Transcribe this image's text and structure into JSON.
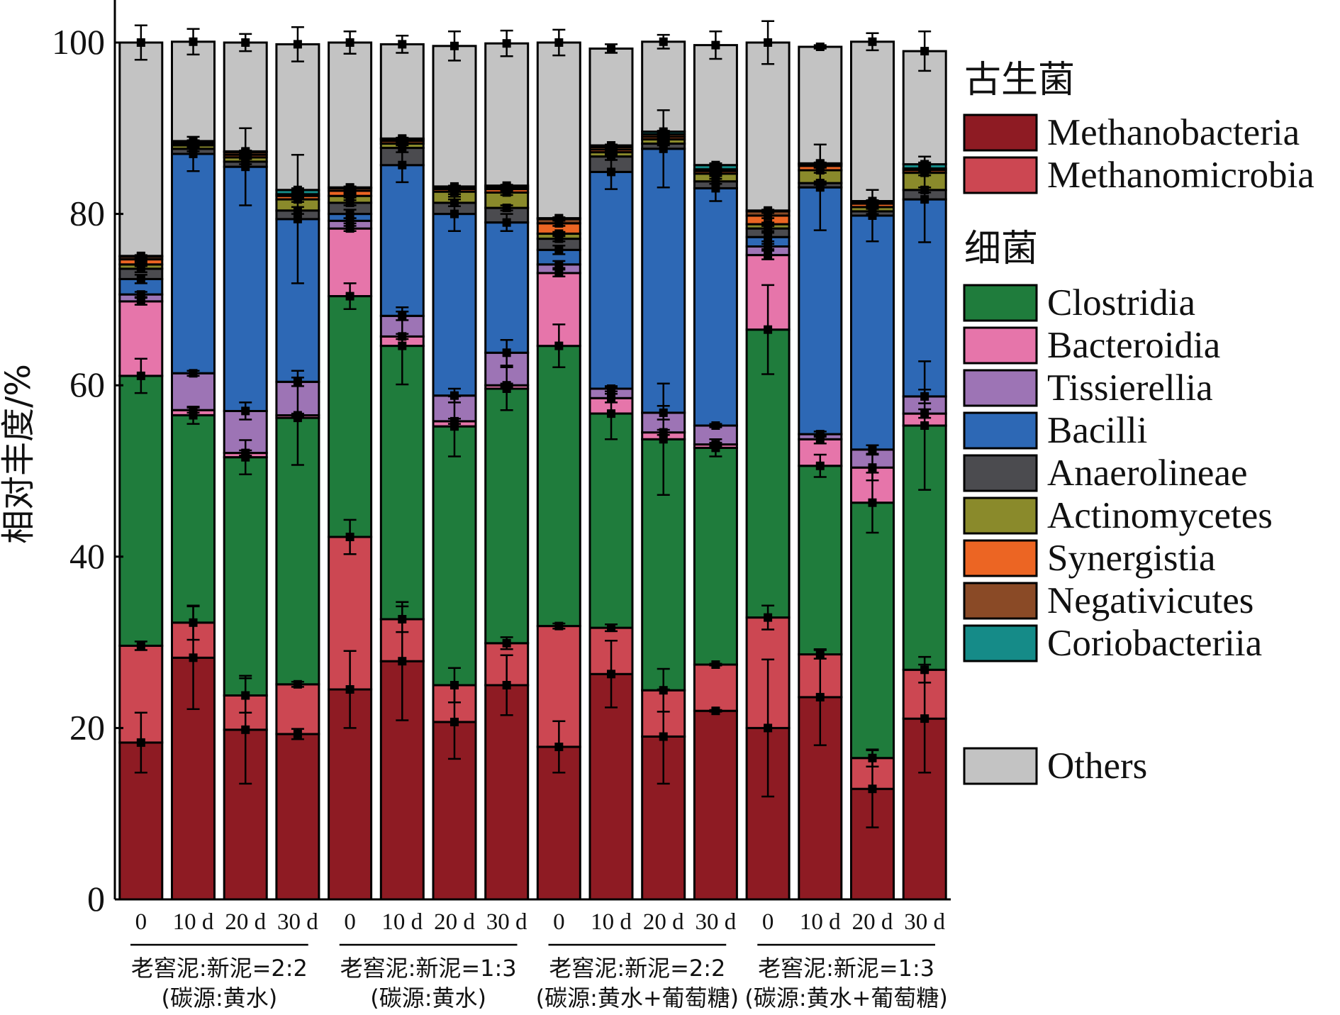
{
  "chart_data": {
    "type": "bar",
    "stacked": true,
    "ylabel": "相对丰度/%",
    "ylim": [
      0,
      100
    ],
    "y_ticks": [
      "0",
      "20",
      "40",
      "60",
      "80",
      "100"
    ],
    "categories": [
      "0",
      "10 d",
      "20 d",
      "30 d",
      "0",
      "10 d",
      "20 d",
      "30 d",
      "0",
      "10 d",
      "20 d",
      "30 d",
      "0",
      "10 d",
      "20 d",
      "30 d"
    ],
    "groups": [
      {
        "label_line1": "老窖泥:新泥=2:2",
        "label_line2": "(碳源:黄水)"
      },
      {
        "label_line1": "老窖泥:新泥=1:3",
        "label_line2": "(碳源:黄水)"
      },
      {
        "label_line1": "老窖泥:新泥=2:2",
        "label_line2": "(碳源:黄水+葡萄糖)"
      },
      {
        "label_line1": "老窖泥:新泥=1:3",
        "label_line2": "(碳源:黄水+葡萄糖)"
      }
    ],
    "legend_group_archaea": "古生菌",
    "legend_group_bacteria": "细菌",
    "series": [
      {
        "name": "Methanobacteria",
        "color": "#8e1b23",
        "group": "archaea",
        "values": [
          18.3,
          28.2,
          19.8,
          19.3,
          24.5,
          27.8,
          20.7,
          25.0,
          17.8,
          26.3,
          19.0,
          22.0,
          20.0,
          23.6,
          12.9,
          21.1
        ],
        "errors": [
          3.5,
          6.0,
          6.3,
          0.6,
          4.5,
          6.9,
          4.3,
          3.5,
          3.0,
          3.9,
          5.5,
          0.1,
          8.0,
          5.6,
          4.5,
          6.3
        ]
      },
      {
        "name": "Methanomicrobia",
        "color": "#cc4752",
        "group": "archaea",
        "values": [
          11.3,
          4.1,
          4.0,
          5.8,
          17.8,
          4.9,
          4.3,
          4.9,
          14.1,
          5.4,
          5.4,
          5.4,
          12.9,
          5.0,
          3.6,
          5.7
        ],
        "errors": [
          0.5,
          2.0,
          2.0,
          0.3,
          2.0,
          1.5,
          2.0,
          0.7,
          0.3,
          0.4,
          2.5,
          0.1,
          1.4,
          0.5,
          1.0,
          1.5
        ]
      },
      {
        "name": "Clostridia",
        "color": "#1f7c3c",
        "group": "bacteria",
        "values": [
          31.5,
          24.2,
          27.8,
          31.1,
          28.1,
          31.9,
          30.2,
          29.7,
          32.7,
          25.0,
          29.3,
          25.3,
          33.6,
          22.0,
          29.8,
          28.5
        ],
        "errors": [
          2.0,
          1.0,
          2.0,
          5.5,
          1.5,
          4.5,
          3.5,
          2.5,
          2.5,
          3.0,
          6.5,
          1.0,
          5.2,
          1.3,
          3.5,
          7.5
        ]
      },
      {
        "name": "Bacteroidia",
        "color": "#e675aa",
        "group": "bacteria",
        "values": [
          8.7,
          0.6,
          0.5,
          0.3,
          7.9,
          1.1,
          0.6,
          0.4,
          8.5,
          1.8,
          0.8,
          0.4,
          8.7,
          3.1,
          4.1,
          1.4
        ],
        "errors": [
          0.4,
          0.3,
          0.3,
          0.2,
          0.3,
          0.3,
          0.3,
          0.2,
          0.4,
          0.5,
          0.3,
          0.2,
          0.5,
          0.5,
          1.5,
          0.5
        ]
      },
      {
        "name": "Tissierellia",
        "color": "#9d74b5",
        "group": "bacteria",
        "values": [
          0.8,
          4.3,
          4.9,
          3.9,
          0.9,
          2.4,
          3.0,
          3.8,
          1.0,
          1.1,
          2.3,
          2.2,
          1.0,
          0.6,
          2.1,
          2.0
        ],
        "errors": [
          0.3,
          0.3,
          1.0,
          0.5,
          0.3,
          0.5,
          0.8,
          1.5,
          0.4,
          0.3,
          0.8,
          0.2,
          0.3,
          0.3,
          0.5,
          0.8
        ]
      },
      {
        "name": "Bacilli",
        "color": "#2d68b5",
        "group": "bacteria",
        "values": [
          1.8,
          25.6,
          28.5,
          19.0,
          0.8,
          17.6,
          21.2,
          15.2,
          1.7,
          25.3,
          30.8,
          27.7,
          1.1,
          28.8,
          27.3,
          23.0
        ],
        "errors": [
          0.5,
          2.0,
          4.5,
          7.5,
          0.5,
          2.0,
          2.0,
          1.0,
          0.5,
          2.0,
          4.5,
          1.5,
          0.5,
          5.0,
          3.0,
          5.0
        ]
      },
      {
        "name": "Anaerolineae",
        "color": "#4b4b4f",
        "group": "bacteria",
        "values": [
          1.2,
          0.6,
          0.6,
          1.0,
          1.3,
          2.0,
          1.3,
          1.7,
          1.3,
          1.8,
          0.6,
          0.8,
          1.0,
          0.5,
          0.5,
          1.1
        ],
        "errors": [
          0.4,
          0.3,
          0.3,
          0.4,
          0.3,
          0.5,
          0.4,
          0.3,
          0.3,
          0.4,
          0.2,
          0.3,
          0.3,
          0.2,
          0.3,
          0.3
        ]
      },
      {
        "name": "Actinomycetes",
        "color": "#8a8a2b",
        "group": "bacteria",
        "values": [
          0.5,
          0.4,
          0.5,
          1.3,
          0.8,
          0.5,
          1.3,
          1.8,
          0.6,
          0.5,
          0.5,
          0.9,
          0.5,
          1.5,
          0.5,
          2.0
        ],
        "errors": [
          0.2,
          0.2,
          0.2,
          0.3,
          0.2,
          0.2,
          0.3,
          0.3,
          0.2,
          0.2,
          0.2,
          0.3,
          0.2,
          0.3,
          0.2,
          0.3
        ]
      },
      {
        "name": "Synergistia",
        "color": "#ec6523",
        "group": "bacteria",
        "values": [
          0.6,
          0.2,
          0.3,
          0.4,
          0.6,
          0.3,
          0.3,
          0.4,
          1.2,
          0.3,
          0.3,
          0.3,
          1.0,
          0.5,
          0.4,
          0.3
        ],
        "errors": [
          0.2,
          0.1,
          0.1,
          0.2,
          0.2,
          0.1,
          0.1,
          0.2,
          0.3,
          0.1,
          0.1,
          0.1,
          0.3,
          0.2,
          0.2,
          0.1
        ]
      },
      {
        "name": "Negativicutes",
        "color": "#8a4a26",
        "group": "bacteria",
        "values": [
          0.3,
          0.2,
          0.3,
          0.2,
          0.3,
          0.2,
          0.2,
          0.2,
          0.5,
          0.3,
          0.3,
          0.2,
          0.5,
          0.2,
          0.2,
          0.2
        ],
        "errors": [
          0.1,
          0.1,
          0.1,
          0.1,
          0.1,
          0.1,
          0.1,
          0.1,
          0.1,
          0.1,
          0.1,
          0.1,
          0.1,
          0.1,
          0.1,
          0.1
        ]
      },
      {
        "name": "Coriobacteriia",
        "color": "#158b88",
        "group": "bacteria",
        "values": [
          0.1,
          0.1,
          0.1,
          0.5,
          0.1,
          0.1,
          0.1,
          0.2,
          0.1,
          0.2,
          0.3,
          0.5,
          0.1,
          0.1,
          0.1,
          0.5
        ],
        "errors": [
          0.1,
          0.1,
          0.1,
          0.2,
          0.1,
          0.1,
          0.1,
          0.1,
          0.1,
          0.1,
          0.1,
          0.2,
          0.1,
          0.1,
          0.1,
          0.2
        ]
      },
      {
        "name": "Others",
        "color": "#c3c3c3",
        "group": "other",
        "values": [
          24.9,
          11.6,
          12.7,
          17.0,
          16.9,
          11.0,
          16.4,
          16.6,
          20.5,
          11.3,
          10.5,
          14.0,
          19.6,
          13.6,
          18.6,
          13.2
        ],
        "errors": [
          2.0,
          1.5,
          1.0,
          2.0,
          1.3,
          1.0,
          1.7,
          1.5,
          1.5,
          0.5,
          0.8,
          1.6,
          2.5,
          0.2,
          1.0,
          2.3
        ]
      }
    ],
    "legend_position": "right",
    "grid": false
  }
}
